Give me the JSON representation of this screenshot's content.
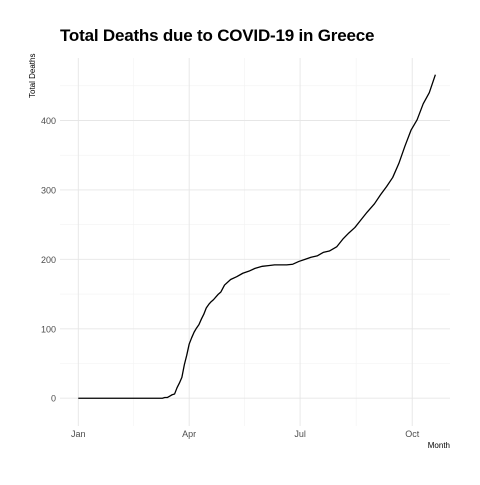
{
  "chart_data": {
    "type": "line",
    "title": "Total Deaths due to COVID-19 in Greece",
    "xlabel": "Month",
    "ylabel": "Total Deaths",
    "x_ticks": [
      "Jan",
      "Apr",
      "Jul",
      "Oct"
    ],
    "x_tick_dates": [
      "2020-01-01",
      "2020-04-01",
      "2020-07-01",
      "2020-10-01"
    ],
    "x_range": [
      "2019-12-17",
      "2020-11-01"
    ],
    "y_ticks": [
      0,
      100,
      200,
      300,
      400
    ],
    "ylim": [
      -40,
      490
    ],
    "grid": true,
    "line_color": "#000000",
    "x": [
      "2020-01-01",
      "2020-03-10",
      "2020-03-12",
      "2020-03-14",
      "2020-03-16",
      "2020-03-18",
      "2020-03-20",
      "2020-03-22",
      "2020-03-24",
      "2020-03-26",
      "2020-03-28",
      "2020-03-30",
      "2020-04-01",
      "2020-04-03",
      "2020-04-05",
      "2020-04-07",
      "2020-04-09",
      "2020-04-11",
      "2020-04-13",
      "2020-04-15",
      "2020-04-17",
      "2020-04-19",
      "2020-04-21",
      "2020-04-23",
      "2020-04-25",
      "2020-04-27",
      "2020-04-30",
      "2020-05-05",
      "2020-05-10",
      "2020-05-15",
      "2020-05-20",
      "2020-05-25",
      "2020-05-31",
      "2020-06-05",
      "2020-06-10",
      "2020-06-15",
      "2020-06-20",
      "2020-06-25",
      "2020-06-30",
      "2020-07-05",
      "2020-07-10",
      "2020-07-15",
      "2020-07-20",
      "2020-07-25",
      "2020-07-31",
      "2020-08-05",
      "2020-08-10",
      "2020-08-15",
      "2020-08-20",
      "2020-08-25",
      "2020-08-31",
      "2020-09-05",
      "2020-09-10",
      "2020-09-15",
      "2020-09-20",
      "2020-09-25",
      "2020-09-30",
      "2020-10-05",
      "2020-10-10",
      "2020-10-15",
      "2020-10-20"
    ],
    "y": [
      0,
      0,
      1,
      1,
      3,
      5,
      6,
      15,
      22,
      30,
      48,
      62,
      78,
      87,
      95,
      101,
      106,
      114,
      121,
      130,
      135,
      139,
      142,
      146,
      150,
      153,
      163,
      171,
      175,
      180,
      183,
      187,
      190,
      191,
      192,
      192,
      192,
      193,
      197,
      200,
      203,
      205,
      210,
      212,
      218,
      229,
      238,
      246,
      257,
      268,
      280,
      293,
      305,
      318,
      338,
      363,
      386,
      401,
      424,
      440,
      466
    ]
  }
}
